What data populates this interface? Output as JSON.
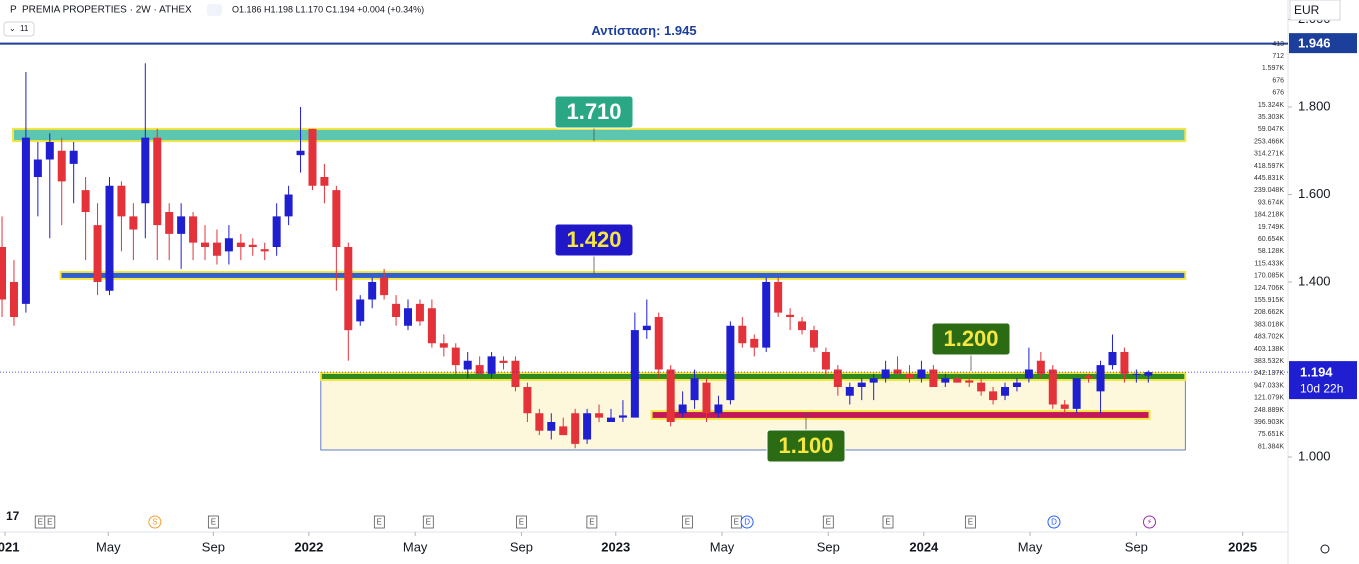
{
  "chart_data": {
    "type": "candlestick",
    "symbol_icon": "P",
    "title": "PREMIA PROPERTIES · 2W · ATHEX",
    "ohlc_text": "O1.186 H1.198 L1.170 C1.194 +0.004 (+0.34%)",
    "indicator_count": "11",
    "currency": "EUR",
    "up_color": "#1f1fd1",
    "down_color": "#e3323a",
    "xlim": [
      -0.17,
      107.7
    ],
    "ylim": [
      0.8331,
      2.0446
    ],
    "yticks": [
      {
        "value": 1.0,
        "label": "1.000"
      },
      {
        "value": 1.4,
        "label": "1.400"
      },
      {
        "value": 1.6,
        "label": "1.600"
      },
      {
        "value": 1.8,
        "label": "1.800"
      },
      {
        "value": 2.0,
        "label": "2.000"
      }
    ],
    "xticks": [
      {
        "value": 0.25,
        "label": "2021"
      },
      {
        "value": 8.9,
        "label": "May"
      },
      {
        "value": 17.7,
        "label": "Sep"
      },
      {
        "value": 25.7,
        "label": "2022"
      },
      {
        "value": 34.6,
        "label": "May"
      },
      {
        "value": 43.5,
        "label": "Sep"
      },
      {
        "value": 51.4,
        "label": "2023"
      },
      {
        "value": 60.3,
        "label": "May"
      },
      {
        "value": 69.2,
        "label": "Sep"
      },
      {
        "value": 77.2,
        "label": "2024"
      },
      {
        "value": 86.1,
        "label": "May"
      },
      {
        "value": 95,
        "label": "Sep"
      },
      {
        "value": 103.9,
        "label": "2025"
      }
    ],
    "candles": [
      [
        1.48,
        1.55,
        1.32,
        1.36
      ],
      [
        1.4,
        1.45,
        1.3,
        1.32
      ],
      [
        1.35,
        1.88,
        1.33,
        1.73
      ],
      [
        1.64,
        1.72,
        1.55,
        1.68
      ],
      [
        1.68,
        1.74,
        1.5,
        1.72
      ],
      [
        1.7,
        1.73,
        1.53,
        1.63
      ],
      [
        1.67,
        1.72,
        1.58,
        1.7
      ],
      [
        1.61,
        1.64,
        1.45,
        1.56
      ],
      [
        1.53,
        1.58,
        1.37,
        1.4
      ],
      [
        1.38,
        1.64,
        1.37,
        1.62
      ],
      [
        1.62,
        1.63,
        1.47,
        1.55
      ],
      [
        1.55,
        1.58,
        1.45,
        1.52
      ],
      [
        1.58,
        1.9,
        1.5,
        1.73
      ],
      [
        1.73,
        1.75,
        1.45,
        1.53
      ],
      [
        1.56,
        1.58,
        1.45,
        1.51
      ],
      [
        1.51,
        1.58,
        1.43,
        1.55
      ],
      [
        1.55,
        1.56,
        1.45,
        1.49
      ],
      [
        1.49,
        1.53,
        1.45,
        1.48
      ],
      [
        1.49,
        1.52,
        1.44,
        1.46
      ],
      [
        1.47,
        1.53,
        1.44,
        1.5
      ],
      [
        1.49,
        1.51,
        1.45,
        1.48
      ],
      [
        1.485,
        1.5,
        1.46,
        1.48
      ],
      [
        1.475,
        1.49,
        1.45,
        1.47
      ],
      [
        1.48,
        1.58,
        1.46,
        1.55
      ],
      [
        1.55,
        1.62,
        1.53,
        1.6
      ],
      [
        1.69,
        1.8,
        1.65,
        1.7
      ],
      [
        1.75,
        1.75,
        1.61,
        1.62
      ],
      [
        1.64,
        1.67,
        1.58,
        1.62
      ],
      [
        1.61,
        1.62,
        1.38,
        1.48
      ],
      [
        1.48,
        1.49,
        1.22,
        1.29
      ],
      [
        1.31,
        1.37,
        1.3,
        1.36
      ],
      [
        1.36,
        1.41,
        1.34,
        1.4
      ],
      [
        1.41,
        1.43,
        1.36,
        1.37
      ],
      [
        1.35,
        1.37,
        1.3,
        1.32
      ],
      [
        1.3,
        1.36,
        1.29,
        1.34
      ],
      [
        1.35,
        1.36,
        1.3,
        1.31
      ],
      [
        1.34,
        1.36,
        1.25,
        1.26
      ],
      [
        1.26,
        1.28,
        1.23,
        1.25
      ],
      [
        1.25,
        1.26,
        1.19,
        1.21
      ],
      [
        1.2,
        1.24,
        1.18,
        1.22
      ],
      [
        1.21,
        1.23,
        1.18,
        1.19
      ],
      [
        1.19,
        1.24,
        1.18,
        1.23
      ],
      [
        1.22,
        1.23,
        1.2,
        1.215
      ],
      [
        1.22,
        1.23,
        1.15,
        1.16
      ],
      [
        1.16,
        1.17,
        1.08,
        1.1
      ],
      [
        1.1,
        1.11,
        1.05,
        1.06
      ],
      [
        1.06,
        1.1,
        1.04,
        1.08
      ],
      [
        1.07,
        1.09,
        1.05,
        1.05
      ],
      [
        1.1,
        1.11,
        1.02,
        1.03
      ],
      [
        1.04,
        1.11,
        1.03,
        1.1
      ],
      [
        1.1,
        1.12,
        1.08,
        1.09
      ],
      [
        1.08,
        1.11,
        1.08,
        1.09
      ],
      [
        1.09,
        1.13,
        1.08,
        1.095
      ],
      [
        1.09,
        1.33,
        1.09,
        1.29
      ],
      [
        1.29,
        1.36,
        1.27,
        1.3
      ],
      [
        1.32,
        1.33,
        1.18,
        1.2
      ],
      [
        1.2,
        1.21,
        1.07,
        1.08
      ],
      [
        1.1,
        1.15,
        1.09,
        1.12
      ],
      [
        1.13,
        1.2,
        1.11,
        1.18
      ],
      [
        1.17,
        1.18,
        1.08,
        1.1
      ],
      [
        1.1,
        1.14,
        1.09,
        1.12
      ],
      [
        1.13,
        1.31,
        1.12,
        1.3
      ],
      [
        1.3,
        1.32,
        1.25,
        1.26
      ],
      [
        1.27,
        1.28,
        1.23,
        1.25
      ],
      [
        1.25,
        1.41,
        1.24,
        1.4
      ],
      [
        1.4,
        1.41,
        1.32,
        1.33
      ],
      [
        1.325,
        1.34,
        1.29,
        1.32
      ],
      [
        1.31,
        1.32,
        1.28,
        1.29
      ],
      [
        1.29,
        1.3,
        1.24,
        1.25
      ],
      [
        1.24,
        1.25,
        1.18,
        1.2
      ],
      [
        1.2,
        1.21,
        1.14,
        1.16
      ],
      [
        1.14,
        1.17,
        1.12,
        1.16
      ],
      [
        1.16,
        1.18,
        1.13,
        1.17
      ],
      [
        1.17,
        1.19,
        1.13,
        1.18
      ],
      [
        1.18,
        1.22,
        1.17,
        1.2
      ],
      [
        1.2,
        1.23,
        1.18,
        1.19
      ],
      [
        1.19,
        1.21,
        1.17,
        1.18
      ],
      [
        1.18,
        1.22,
        1.17,
        1.2
      ],
      [
        1.2,
        1.21,
        1.16,
        1.16
      ],
      [
        1.17,
        1.19,
        1.16,
        1.18
      ],
      [
        1.18,
        1.19,
        1.17,
        1.17
      ],
      [
        1.175,
        1.19,
        1.16,
        1.17
      ],
      [
        1.17,
        1.18,
        1.14,
        1.15
      ],
      [
        1.15,
        1.16,
        1.12,
        1.13
      ],
      [
        1.14,
        1.17,
        1.13,
        1.16
      ],
      [
        1.16,
        1.18,
        1.15,
        1.17
      ],
      [
        1.18,
        1.25,
        1.17,
        1.2
      ],
      [
        1.22,
        1.24,
        1.18,
        1.19
      ],
      [
        1.2,
        1.21,
        1.11,
        1.12
      ],
      [
        1.12,
        1.13,
        1.1,
        1.11
      ],
      [
        1.11,
        1.18,
        1.1,
        1.18
      ],
      [
        1.185,
        1.19,
        1.17,
        1.18
      ],
      [
        1.15,
        1.22,
        1.1,
        1.21
      ],
      [
        1.21,
        1.28,
        1.2,
        1.24
      ],
      [
        1.24,
        1.25,
        1.17,
        1.19
      ],
      [
        1.19,
        1.2,
        1.17,
        1.19
      ],
      [
        1.186,
        1.198,
        1.17,
        1.194
      ]
    ],
    "resistance": {
      "label": "Αντίσταση: 1.945",
      "value": 1.945,
      "badge": {
        "value": 1.946,
        "label": "1.946"
      },
      "color": "#1c3f9c"
    },
    "zones": [
      {
        "label": "1.710",
        "range": [
          1.722,
          1.75
        ],
        "x": [
          0.92,
          99.1
        ],
        "color": "#5cc6b0",
        "label_color": "#2aa886"
      },
      {
        "label": "1.420",
        "range": [
          1.407,
          1.423
        ],
        "x": [
          4.9,
          99.1
        ],
        "color": "#2f5fd0",
        "label_color": "#1f17c8"
      },
      {
        "label": "1.200",
        "range": [
          1.176,
          1.192
        ],
        "x": [
          26.7,
          99.1
        ],
        "color": "#2e8b20",
        "label_color": "#2b6b14"
      },
      {
        "label": "1.100",
        "range": [
          1.087,
          1.105
        ],
        "x": [
          54.4,
          96.1
        ],
        "color": "#c2185b",
        "label_color": "#2b6b14"
      }
    ],
    "box": {
      "range": [
        1.016,
        1.192
      ],
      "x": [
        26.7,
        99.1
      ],
      "color": "#fdf8dc"
    },
    "price_badge": {
      "value": 1.194,
      "label": "1.194",
      "countdown": "10d 22h"
    },
    "volume_labels": [
      "413",
      "712",
      "1.597K",
      "676",
      "676",
      "15.324K",
      "35.303K",
      "59.047K",
      "253.466K",
      "314.271K",
      "418.597K",
      "445.831K",
      "239.048K",
      "93.674K",
      "184.218K",
      "19.749K",
      "60.654K",
      "58.128K",
      "115.433K",
      "170.085K",
      "124.706K",
      "155.915K",
      "208.662K",
      "383.018K",
      "483.702K",
      "403.138K",
      "383.532K",
      "242.137K",
      "947.033K",
      "121.079K",
      "248.889K",
      "396.903K",
      "75.651K",
      "81.384K"
    ],
    "events": [
      {
        "label": "E",
        "x": 3.2
      },
      {
        "label": "E",
        "x": 4.0
      },
      {
        "label": "S",
        "x": 12.8
      },
      {
        "label": "E",
        "x": 17.7
      },
      {
        "label": "E",
        "x": 31.6
      },
      {
        "label": "E",
        "x": 35.7
      },
      {
        "label": "E",
        "x": 43.5
      },
      {
        "label": "E",
        "x": 49.4
      },
      {
        "label": "E",
        "x": 57.4
      },
      {
        "label": "E",
        "x": 61.5
      },
      {
        "label": "D",
        "x": 62.4
      },
      {
        "label": "E",
        "x": 69.2
      },
      {
        "label": "E",
        "x": 74.2
      },
      {
        "label": "E",
        "x": 81.1
      },
      {
        "label": "D",
        "x": 88.1
      },
      {
        "label": "⚡",
        "x": 96.1
      }
    ]
  }
}
